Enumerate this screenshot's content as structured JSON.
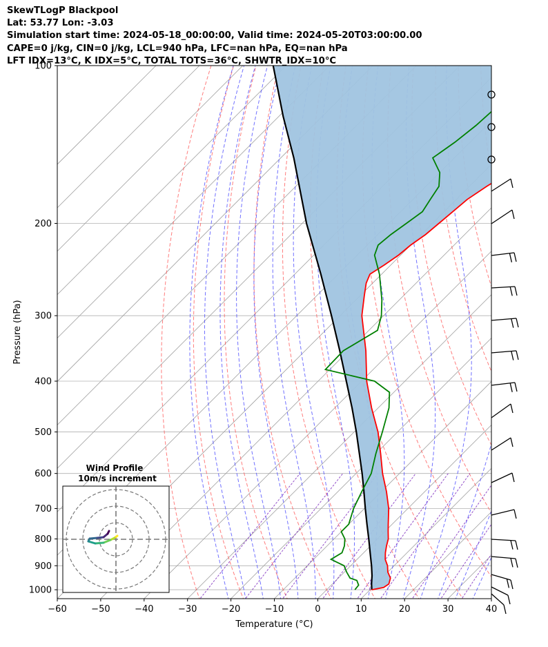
{
  "header": {
    "line1": "SkewTLogP Blackpool",
    "line2": "Lat: 53.77   Lon: -3.03",
    "line3": "Simulation start time: 2024-05-18_00:00:00, Valid time: 2024-05-20T03:00:00.00",
    "line4": "CAPE=0 j/kg, CIN=0 j/kg, LCL=940 hPa, LFC=nan hPa, EQ=nan hPa",
    "line5": "LFT IDX=13°C, K IDX=5°C, TOTAL TOTS=36°C, SHWTR_IDX=10°C"
  },
  "colors": {
    "temperature": "#ff0000",
    "dewpoint": "#008000",
    "parcel": "#000000",
    "cape_fill": "#a0c4e0",
    "dry_adiabat": "#ff5050",
    "moist_adiabat": "#4040ff",
    "mixing_ratio": "#8030c0",
    "isotherm": "#a0a0a0"
  },
  "chart_data": {
    "type": "line",
    "xlabel": "Temperature (°C)",
    "ylabel": "Pressure (hPa)",
    "xlim": [
      -60,
      40
    ],
    "ylim": [
      1040,
      100
    ],
    "y_scale": "log",
    "skew": true,
    "grid": true,
    "x_ticks": [
      "−60",
      "−50",
      "−40",
      "−30",
      "−20",
      "−10",
      "0",
      "10",
      "20",
      "30",
      "40"
    ],
    "y_ticks": [
      "1000",
      "900",
      "800",
      "700",
      "600",
      "500",
      "400",
      "300",
      "200",
      "100"
    ],
    "series": [
      {
        "pressure": [
          1000,
          990,
          975,
          950,
          925,
          900,
          875,
          850,
          825,
          800,
          775,
          750,
          700,
          650,
          600,
          550,
          500,
          450,
          400,
          350,
          300,
          275,
          260,
          250,
          240,
          230,
          220,
          210,
          200,
          190,
          180,
          170,
          160,
          150,
          140,
          130,
          120,
          110,
          100
        ],
        "values": [
          10.4,
          12.6,
          13.0,
          12.0,
          10.0,
          8.5,
          6.5,
          5.0,
          3.7,
          2.5,
          0.8,
          -0.9,
          -4.4,
          -8.8,
          -13.9,
          -18.9,
          -24.5,
          -31.5,
          -38.8,
          -46.0,
          -55.0,
          -59.0,
          -61.5,
          -62.7,
          -61.5,
          -60.5,
          -60.0,
          -59.0,
          -58.5,
          -58.0,
          -57.5,
          -56.0,
          -54.0,
          -52.0,
          -52.0,
          -51.0,
          -51.0,
          -50.5,
          -50.0
        ]
      },
      {
        "pressure": [
          1000,
          980,
          960,
          950,
          925,
          900,
          875,
          850,
          825,
          800,
          775,
          750,
          700,
          650,
          600,
          550,
          500,
          450,
          420,
          400,
          380,
          350,
          320,
          300,
          280,
          250,
          230,
          220,
          210,
          200,
          190,
          180,
          170,
          160,
          150,
          140,
          130,
          120,
          110,
          100
        ],
        "values": [
          6.5,
          6.3,
          4.8,
          2.7,
          0.5,
          -1.5,
          -6.0,
          -5.0,
          -6.0,
          -7.5,
          -10.0,
          -10.0,
          -12.5,
          -14.5,
          -16.5,
          -20.0,
          -23.5,
          -27.5,
          -31.0,
          -37.0,
          -51.0,
          -51.2,
          -48.0,
          -50.5,
          -54.0,
          -60.5,
          -66.0,
          -67.5,
          -67.0,
          -66.0,
          -65.0,
          -66.0,
          -67.0,
          -70.0,
          -75.0,
          -73.5,
          -72.5,
          -72.0,
          -72.0,
          -72.0
        ]
      },
      {
        "pressure": [
          1000,
          975,
          940,
          900,
          850,
          800,
          750,
          700,
          650,
          600,
          550,
          500,
          450,
          400,
          350,
          300,
          250,
          200,
          150,
          125,
          100
        ],
        "values": [
          10.4,
          9.0,
          7.2,
          4.8,
          1.5,
          -2.0,
          -5.8,
          -9.8,
          -14.0,
          -18.6,
          -23.8,
          -29.5,
          -36.0,
          -43.5,
          -52.0,
          -62.0,
          -74.0,
          -89.0,
          -107.0,
          -119.0,
          -133.0
        ]
      }
    ],
    "wind_profile": {
      "title": "Wind Profile",
      "subtitle": "10m/s increment"
    }
  }
}
